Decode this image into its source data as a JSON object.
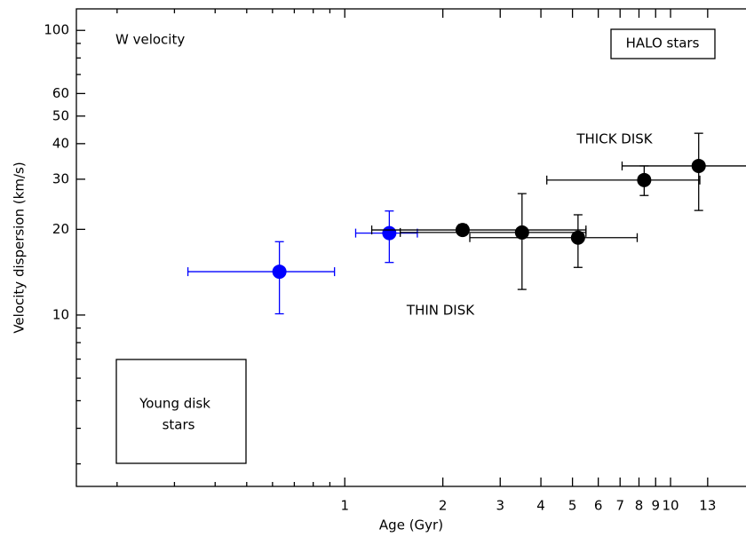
{
  "chart_data": {
    "type": "scatter",
    "x_label": "Age (Gyr)",
    "y_label": "Velocity dispersion (km/s)",
    "annotations": [
      "W velocity",
      "HALO stars",
      "THICK DISK",
      "THIN DISK",
      "Young disk",
      "stars"
    ],
    "xscale": "log",
    "yscale": "log",
    "xlim": [
      0.15,
      17.7
    ],
    "ylim": [
      2.5,
      119
    ],
    "xticks": [
      1,
      2,
      3,
      4,
      5,
      6,
      7,
      8,
      9,
      10,
      13
    ],
    "xminorticks": [
      0.2,
      0.3,
      0.4,
      0.5,
      0.6,
      0.7,
      0.8,
      0.9
    ],
    "yticks": [
      10,
      20,
      30,
      40,
      50,
      60,
      100
    ],
    "yminorticks": [
      3,
      4,
      5,
      6,
      7,
      8,
      9,
      70,
      80,
      90
    ],
    "series": [
      {
        "color": "#0000ff",
        "x": [
          0.63,
          1.37
        ],
        "values": [
          14.2,
          19.4
        ],
        "x_low": [
          0.33,
          1.08
        ],
        "x_high": [
          0.93,
          1.67
        ],
        "y_low": [
          10.1,
          15.3
        ],
        "y_high": [
          18.1,
          23.2
        ]
      },
      {
        "color": "#000000",
        "x": [
          2.3,
          3.5,
          5.2,
          8.3,
          12.2
        ],
        "values": [
          19.9,
          19.5,
          18.7,
          29.8,
          33.4
        ],
        "x_low": [
          1.21,
          1.48,
          2.42,
          4.17,
          7.1
        ],
        "x_high": [
          5.5,
          5.5,
          7.9,
          12.3,
          17.5
        ],
        "y_low": [
          19.1,
          12.3,
          14.7,
          26.3,
          23.3
        ],
        "y_high": [
          20.8,
          26.7,
          22.5,
          33.4,
          43.5
        ]
      }
    ]
  }
}
